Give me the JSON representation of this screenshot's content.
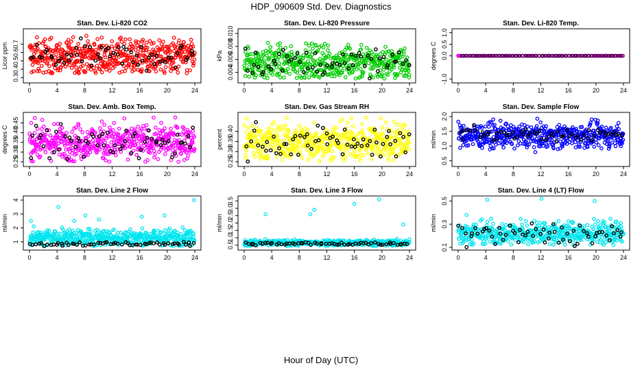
{
  "title": "HDP_090609  Std. Dev. Diagnostics",
  "xlabel": "Hour of Day (UTC)",
  "chart_data": [
    {
      "type": "scatter",
      "title": "Stan. Dev. Li-820 CO2",
      "ylabel": "Licor ppm",
      "color": "#ff0000",
      "xlim": [
        0,
        24
      ],
      "ylim": [
        0.27,
        0.85
      ],
      "yticks": [
        "0.3",
        "0.4",
        "0.5",
        "0.6",
        "0.7"
      ],
      "ytick_values": [
        0.3,
        0.4,
        0.5,
        0.6,
        0.7
      ],
      "xticks": [
        "0",
        "4",
        "8",
        "12",
        "16",
        "20",
        "24"
      ],
      "band": [
        0.35,
        0.8
      ],
      "center": 0.55,
      "spread": 0.11,
      "black_center": 0.55,
      "black_spread": 0.08,
      "outliers": []
    },
    {
      "type": "scatter",
      "title": "Stan. Dev. Li-820 Pressure",
      "ylabel": "kPa",
      "color": "#00cc00",
      "xlim": [
        0,
        24
      ],
      "ylim": [
        0.0028,
        0.0103
      ],
      "yticks": [
        "0.004",
        "0.006",
        "0.008",
        "0.010"
      ],
      "ytick_values": [
        0.004,
        0.006,
        0.008,
        0.01
      ],
      "xticks": [
        "0",
        "4",
        "8",
        "12",
        "16",
        "20",
        "24"
      ],
      "band": [
        0.003,
        0.0102
      ],
      "center": 0.0055,
      "spread": 0.0013,
      "black_center": 0.0055,
      "black_spread": 0.001,
      "outliers": []
    },
    {
      "type": "scatter",
      "title": "Stan. Dev. Li-820 Temp.",
      "ylabel": "degrees C",
      "color": "#cc00cc",
      "xlim": [
        0,
        24
      ],
      "ylim": [
        -1.05,
        1.05
      ],
      "yticks": [
        "-1.0",
        "0.0",
        "0.5",
        "1.0"
      ],
      "ytick_values": [
        -1.0,
        0.0,
        0.5,
        1.0
      ],
      "xticks": [
        "0",
        "4",
        "8",
        "12",
        "16",
        "20",
        "24"
      ],
      "band": [
        0,
        0
      ],
      "center": 0.0,
      "spread": 0.0,
      "black_center": 0.0,
      "black_spread": 0.0,
      "outliers": []
    },
    {
      "type": "scatter",
      "title": "Stan. Dev. Amb. Box Temp.",
      "ylabel": "degrees C",
      "color": "#ff00ff",
      "xlim": [
        0,
        24
      ],
      "ylim": [
        0.24,
        0.49
      ],
      "yticks": [
        "0.25",
        "0.30",
        "0.35",
        "0.40",
        "0.45"
      ],
      "ytick_values": [
        0.25,
        0.3,
        0.35,
        0.4,
        0.45
      ],
      "xticks": [
        "0",
        "4",
        "8",
        "12",
        "16",
        "20",
        "24"
      ],
      "band": [
        0.25,
        0.48
      ],
      "center": 0.35,
      "spread": 0.045,
      "black_center": 0.35,
      "black_spread": 0.04,
      "outliers": []
    },
    {
      "type": "scatter",
      "title": "Stan. Dev. Gas Stream RH",
      "ylabel": "percent",
      "color": "#ffff00",
      "xlim": [
        0,
        24
      ],
      "ylim": [
        0.24,
        0.48
      ],
      "yticks": [
        "0.25",
        "0.30",
        "0.35",
        "0.40"
      ],
      "ytick_values": [
        0.25,
        0.3,
        0.35,
        0.4
      ],
      "xticks": [
        "0",
        "4",
        "8",
        "12",
        "16",
        "20",
        "24"
      ],
      "band": [
        0.25,
        0.47
      ],
      "center": 0.35,
      "spread": 0.045,
      "black_center": 0.35,
      "black_spread": 0.04,
      "outliers": []
    },
    {
      "type": "scatter",
      "title": "Stan. Dev. Sample Flow",
      "ylabel": "ml/min",
      "color": "#0000ff",
      "xlim": [
        0,
        24
      ],
      "ylim": [
        0.4,
        2.05
      ],
      "yticks": [
        "0.5",
        "1.0",
        "1.5",
        "2.0"
      ],
      "ytick_values": [
        0.5,
        1.0,
        1.5,
        2.0
      ],
      "xticks": [
        "0",
        "4",
        "8",
        "12",
        "16",
        "20",
        "24"
      ],
      "band": [
        0.45,
        2.0
      ],
      "center": 1.35,
      "spread": 0.2,
      "black_center": 1.4,
      "black_spread": 0.12,
      "outliers": []
    },
    {
      "type": "scatter",
      "title": "Stan. Dev. Line 2 Flow",
      "ylabel": "ml/min",
      "color": "#00e5ee",
      "xlim": [
        0,
        24
      ],
      "ylim": [
        0.6,
        4.1
      ],
      "yticks": [
        "1",
        "2",
        "3",
        "4"
      ],
      "ytick_values": [
        1,
        2,
        3,
        4
      ],
      "xticks": [
        "0",
        "4",
        "8",
        "12",
        "16",
        "20",
        "24"
      ],
      "band": [
        0.7,
        2.2
      ],
      "center": 1.3,
      "spread": 0.3,
      "black_center": 0.85,
      "black_spread": 0.08,
      "outliers": [
        [
          0.2,
          2.5
        ],
        [
          4.2,
          3.5
        ],
        [
          6.5,
          2.5
        ],
        [
          8.1,
          2.9
        ],
        [
          10.1,
          2.6
        ],
        [
          16.3,
          2.8
        ],
        [
          19.6,
          2.9
        ],
        [
          23.9,
          4.0
        ]
      ]
    },
    {
      "type": "scatter",
      "title": "Stan. Dev. Line 3 Flow",
      "ylabel": "ml/min",
      "color": "#00e5ee",
      "xlim": [
        0,
        24
      ],
      "ylim": [
        0.35,
        3.65
      ],
      "yticks": [
        "0.5",
        "1.0",
        "1.5",
        "2.0",
        "2.5",
        "3.0",
        "3.5"
      ],
      "ytick_values": [
        0.5,
        1.0,
        1.5,
        2.0,
        2.5,
        3.0,
        3.5
      ],
      "xticks": [
        "0",
        "4",
        "8",
        "12",
        "16",
        "20",
        "24"
      ],
      "band": [
        0.45,
        1.0
      ],
      "center": 0.65,
      "spread": 0.1,
      "black_center": 0.6,
      "black_spread": 0.05,
      "outliers": [
        [
          3.1,
          2.6
        ],
        [
          9.6,
          2.6
        ],
        [
          10.2,
          2.9
        ],
        [
          16.0,
          3.3
        ],
        [
          19.6,
          3.6
        ],
        [
          23.1,
          1.9
        ],
        [
          24.0,
          0.9
        ]
      ]
    },
    {
      "type": "scatter",
      "title": "Stan. Dev. Line 4 (LT) Flow",
      "ylabel": "ml/min",
      "color": "#00e5ee",
      "xlim": [
        0,
        24
      ],
      "ylim": [
        0.1,
        0.52
      ],
      "yticks": [
        "0.1",
        "0.3",
        "0.5"
      ],
      "ytick_values": [
        0.1,
        0.3,
        0.5
      ],
      "xticks": [
        "0",
        "4",
        "8",
        "12",
        "16",
        "20",
        "24"
      ],
      "band": [
        0.12,
        0.38
      ],
      "center": 0.22,
      "spread": 0.05,
      "black_center": 0.21,
      "black_spread": 0.05,
      "outliers": [
        [
          4.2,
          0.51
        ],
        [
          12.1,
          0.52
        ],
        [
          19.8,
          0.5
        ],
        [
          1.2,
          0.38
        ]
      ]
    }
  ]
}
